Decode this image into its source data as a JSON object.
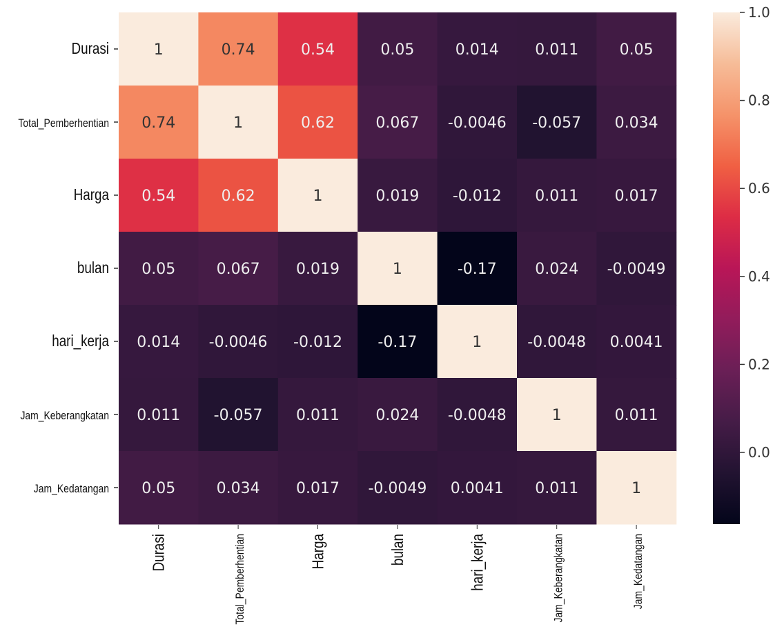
{
  "chart_data": {
    "type": "heatmap",
    "title": "",
    "xlabel": "",
    "ylabel": "",
    "labels": [
      "Durasi",
      "Total_Pemberhentian",
      "Harga",
      "bulan",
      "hari_kerja",
      "Jam_Keberangkatan",
      "Jam_Kedatangan"
    ],
    "matrix": [
      [
        1,
        0.74,
        0.54,
        0.05,
        0.014,
        0.011,
        0.05
      ],
      [
        0.74,
        1,
        0.62,
        0.067,
        -0.0046,
        -0.057,
        0.034
      ],
      [
        0.54,
        0.62,
        1,
        0.019,
        -0.012,
        0.011,
        0.017
      ],
      [
        0.05,
        0.067,
        0.019,
        1,
        -0.17,
        0.024,
        -0.0049
      ],
      [
        0.014,
        -0.0046,
        -0.012,
        -0.17,
        1,
        -0.0048,
        0.0041
      ],
      [
        0.011,
        -0.057,
        0.011,
        0.024,
        -0.0048,
        1,
        0.011
      ],
      [
        0.05,
        0.034,
        0.017,
        -0.0049,
        0.0041,
        0.011,
        1
      ]
    ],
    "annotations": true,
    "colormap": "rocket",
    "vmin": -0.17,
    "vmax": 1.0,
    "colorbar": {
      "ticks": [
        0.0,
        0.2,
        0.4,
        0.6,
        0.8,
        1.0
      ],
      "tick_labels": [
        "0.0",
        "0.2",
        "0.4",
        "0.6",
        "0.8",
        "1.0"
      ],
      "placement": "right"
    }
  }
}
